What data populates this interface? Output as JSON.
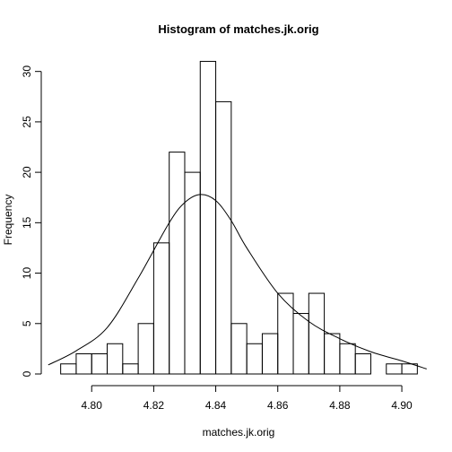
{
  "chart_data": {
    "type": "bar",
    "title": "Histogram of matches.jk.orig",
    "xlabel": "matches.jk.orig",
    "ylabel": "Frequency",
    "xlim": [
      4.7875,
      4.9075
    ],
    "ylim": [
      0,
      31
    ],
    "x_ticks": [
      4.8,
      4.82,
      4.84,
      4.86,
      4.88,
      4.9
    ],
    "x_tick_labels": [
      "4.80",
      "4.82",
      "4.84",
      "4.86",
      "4.88",
      "4.90"
    ],
    "y_ticks": [
      0,
      5,
      10,
      15,
      20,
      25,
      30
    ],
    "y_tick_labels": [
      "0",
      "5",
      "10",
      "15",
      "20",
      "25",
      "30"
    ],
    "bin_width": 0.005,
    "bin_starts": [
      4.79,
      4.795,
      4.8,
      4.805,
      4.81,
      4.815,
      4.82,
      4.825,
      4.83,
      4.835,
      4.84,
      4.845,
      4.85,
      4.855,
      4.86,
      4.865,
      4.87,
      4.875,
      4.88,
      4.885,
      4.89,
      4.895,
      4.9
    ],
    "values": [
      1,
      2,
      2,
      3,
      1,
      5,
      13,
      22,
      20,
      31,
      27,
      5,
      3,
      4,
      8,
      6,
      8,
      4,
      3,
      2,
      0,
      1,
      1
    ],
    "grid": false,
    "overlay_curve": {
      "type": "line",
      "x": [
        4.786,
        4.795,
        4.805,
        4.815,
        4.825,
        4.83,
        4.835,
        4.84,
        4.845,
        4.85,
        4.86,
        4.87,
        4.88,
        4.89,
        4.9,
        4.908
      ],
      "y": [
        0.9,
        2.3,
        4.6,
        9.5,
        15.0,
        17.0,
        17.8,
        17.2,
        15.2,
        12.5,
        8.0,
        5.2,
        3.5,
        2.2,
        1.3,
        0.5
      ]
    }
  }
}
